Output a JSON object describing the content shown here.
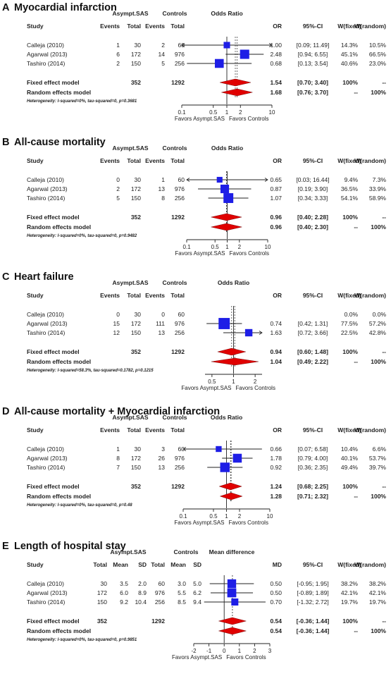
{
  "colors": {
    "box": "#1e1ee6",
    "diamond": "#e00000",
    "ink": "#222222"
  },
  "chart_data": [
    {
      "type": "forest",
      "letter": "A",
      "title": "Myocardial infarction",
      "measure_label": "Odds Ratio",
      "scale": "log",
      "group_exp": "Asympt.SAS",
      "group_ctrl": "Controls",
      "columns": [
        "Study",
        "Events",
        "Total",
        "Events",
        "Total",
        "OR",
        "95%-CI",
        "W(fixed)",
        "W(random)"
      ],
      "studies": [
        {
          "name": "Calleja (2010)",
          "cells": [
            "1",
            "30",
            "2",
            "60"
          ],
          "est": 1.0,
          "lo": 0.09,
          "hi": 11.49,
          "est_txt": "1.00",
          "ci_txt": "[0.09; 11.49]",
          "wf": "14.3%",
          "wr": "10.5%",
          "w": 14.3
        },
        {
          "name": "Agarwal (2013)",
          "cells": [
            "6",
            "172",
            "14",
            "976"
          ],
          "est": 2.48,
          "lo": 0.94,
          "hi": 6.55,
          "est_txt": "2.48",
          "ci_txt": "[0.94; 6.55]",
          "wf": "45.1%",
          "wr": "66.5%",
          "w": 45.1
        },
        {
          "name": "Tashiro (2014)",
          "cells": [
            "2",
            "150",
            "5",
            "256"
          ],
          "est": 0.68,
          "lo": 0.13,
          "hi": 3.54,
          "est_txt": "0.68",
          "ci_txt": "[0.13; 3.54]",
          "wf": "40.6%",
          "wr": "23.0%",
          "w": 40.6
        }
      ],
      "fixed": {
        "label": "Fixed effect model",
        "total_exp": "352",
        "total_ctrl": "1292",
        "est": 1.54,
        "lo": 0.7,
        "hi": 3.4,
        "est_txt": "1.54",
        "ci_txt": "[0.70; 3.40]",
        "wf": "100%",
        "wr": "--"
      },
      "random": {
        "label": "Random effects model",
        "est": 1.68,
        "lo": 0.76,
        "hi": 3.7,
        "est_txt": "1.68",
        "ci_txt": "[0.76; 3.70]",
        "wf": "--",
        "wr": "100%"
      },
      "heterogeneity": "Heterogeneity: I-squared=0%, tau-squared=0, p=0.3681",
      "ticks": [
        {
          "v": 0.1,
          "l": "0.1"
        },
        {
          "v": 0.5,
          "l": "0.5"
        },
        {
          "v": 1,
          "l": "1"
        },
        {
          "v": 2,
          "l": "2"
        },
        {
          "v": 10,
          "l": "10"
        }
      ],
      "xlim": [
        0.1,
        10
      ],
      "ref": 1,
      "favors_left": "Favors Asympt.SAS",
      "favors_right": "Favors Controls"
    },
    {
      "type": "forest",
      "letter": "B",
      "title": "All-cause mortality",
      "measure_label": "Odds Ratio",
      "scale": "log",
      "group_exp": "Asympt.SAS",
      "group_ctrl": "Controls",
      "columns": [
        "Study",
        "Events",
        "Total",
        "Events",
        "Total",
        "OR",
        "95%-CI",
        "W(fixed)",
        "W(random)"
      ],
      "studies": [
        {
          "name": "Calleja (2010)",
          "cells": [
            "0",
            "30",
            "1",
            "60"
          ],
          "est": 0.65,
          "lo": 0.03,
          "hi": 16.44,
          "est_txt": "0.65",
          "ci_txt": "[0.03; 16.44]",
          "wf": "9.4%",
          "wr": "7.3%",
          "w": 9.4
        },
        {
          "name": "Agarwal (2013)",
          "cells": [
            "2",
            "172",
            "13",
            "976"
          ],
          "est": 0.87,
          "lo": 0.19,
          "hi": 3.9,
          "est_txt": "0.87",
          "ci_txt": "[0.19; 3.90]",
          "wf": "36.5%",
          "wr": "33.9%",
          "w": 36.5
        },
        {
          "name": "Tashiro (2014)",
          "cells": [
            "5",
            "150",
            "8",
            "256"
          ],
          "est": 1.07,
          "lo": 0.34,
          "hi": 3.33,
          "est_txt": "1.07",
          "ci_txt": "[0.34; 3.33]",
          "wf": "54.1%",
          "wr": "58.9%",
          "w": 54.1
        }
      ],
      "fixed": {
        "label": "Fixed effect model",
        "total_exp": "352",
        "total_ctrl": "1292",
        "est": 0.96,
        "lo": 0.4,
        "hi": 2.28,
        "est_txt": "0.96",
        "ci_txt": "[0.40; 2.28]",
        "wf": "100%",
        "wr": "--"
      },
      "random": {
        "label": "Random effects model",
        "est": 0.96,
        "lo": 0.4,
        "hi": 2.3,
        "est_txt": "0.96",
        "ci_txt": "[0.40; 2.30]",
        "wf": "--",
        "wr": "100%"
      },
      "heterogeneity": "Heterogeneity: I-squared=0%, tau-squared=0, p=0.9482",
      "ticks": [
        {
          "v": 0.1,
          "l": "0.1"
        },
        {
          "v": 0.5,
          "l": "0.5"
        },
        {
          "v": 1,
          "l": "1"
        },
        {
          "v": 2,
          "l": "2"
        },
        {
          "v": 10,
          "l": "10"
        }
      ],
      "xlim": [
        0.1,
        10
      ],
      "ref": 1,
      "favors_left": "Favors Asympt.SAS",
      "favors_right": "Favors Controls"
    },
    {
      "type": "forest",
      "letter": "C",
      "title": "Heart failure",
      "measure_label": "Odds Ratio",
      "scale": "log",
      "group_exp": "Asympt.SAS",
      "group_ctrl": "Controls",
      "columns": [
        "Study",
        "Events",
        "Total",
        "Events",
        "Total",
        "OR",
        "95%-CI",
        "W(fixed)",
        "W(random)"
      ],
      "studies": [
        {
          "name": "Calleja (2010)",
          "cells": [
            "0",
            "30",
            "0",
            "60"
          ],
          "est": null,
          "lo": null,
          "hi": null,
          "est_txt": "",
          "ci_txt": "",
          "wf": "0.0%",
          "wr": "0.0%",
          "w": 0
        },
        {
          "name": "Agarwal (2013)",
          "cells": [
            "15",
            "172",
            "111",
            "976"
          ],
          "est": 0.74,
          "lo": 0.42,
          "hi": 1.31,
          "est_txt": "0.74",
          "ci_txt": "[0.42; 1.31]",
          "wf": "77.5%",
          "wr": "57.2%",
          "w": 77.5
        },
        {
          "name": "Tashiro (2014)",
          "cells": [
            "12",
            "150",
            "13",
            "256"
          ],
          "est": 1.63,
          "lo": 0.72,
          "hi": 3.66,
          "est_txt": "1.63",
          "ci_txt": "[0.72; 3.66]",
          "wf": "22.5%",
          "wr": "42.8%",
          "w": 22.5
        }
      ],
      "fixed": {
        "label": "Fixed effect model",
        "total_exp": "352",
        "total_ctrl": "1292",
        "est": 0.94,
        "lo": 0.6,
        "hi": 1.48,
        "est_txt": "0.94",
        "ci_txt": "[0.60; 1.48]",
        "wf": "100%",
        "wr": "--"
      },
      "random": {
        "label": "Random effects model",
        "est": 1.04,
        "lo": 0.49,
        "hi": 2.22,
        "est_txt": "1.04",
        "ci_txt": "[0.49; 2.22]",
        "wf": "--",
        "wr": "100%"
      },
      "heterogeneity": "Heterogeneity: I-squared=58.3%, tau-squared=0.1782, p=0.1215",
      "ticks": [
        {
          "v": 0.5,
          "l": "0.5"
        },
        {
          "v": 1,
          "l": "1"
        },
        {
          "v": 2,
          "l": "2"
        }
      ],
      "xlim": [
        0.4,
        2.5
      ],
      "ref": 1,
      "favors_left": "Favors Asympt.SAS",
      "favors_right": "Favors Controls"
    },
    {
      "type": "forest",
      "letter": "D",
      "title": "All-cause mortality + Myocardial infarction",
      "measure_label": "Odds Ratio",
      "scale": "log",
      "group_exp": "Asympt.SAS",
      "group_ctrl": "Controls",
      "columns": [
        "Study",
        "Events",
        "Total",
        "Events",
        "Total",
        "OR",
        "95%-CI",
        "W(fixed)",
        "W(random)"
      ],
      "studies": [
        {
          "name": "Calleja (2010)",
          "cells": [
            "1",
            "30",
            "3",
            "60"
          ],
          "est": 0.66,
          "lo": 0.07,
          "hi": 6.58,
          "est_txt": "0.66",
          "ci_txt": "[0.07; 6.58]",
          "wf": "10.4%",
          "wr": "6.6%",
          "w": 10.4
        },
        {
          "name": "Agarwal (2013)",
          "cells": [
            "8",
            "172",
            "26",
            "976"
          ],
          "est": 1.78,
          "lo": 0.79,
          "hi": 4.0,
          "est_txt": "1.78",
          "ci_txt": "[0.79; 4.00]",
          "wf": "40.1%",
          "wr": "53.7%",
          "w": 40.1
        },
        {
          "name": "Tashiro (2014)",
          "cells": [
            "7",
            "150",
            "13",
            "256"
          ],
          "est": 0.92,
          "lo": 0.36,
          "hi": 2.35,
          "est_txt": "0.92",
          "ci_txt": "[0.36; 2.35]",
          "wf": "49.4%",
          "wr": "39.7%",
          "w": 49.4
        }
      ],
      "fixed": {
        "label": "Fixed effect model",
        "total_exp": "352",
        "total_ctrl": "1292",
        "est": 1.24,
        "lo": 0.68,
        "hi": 2.25,
        "est_txt": "1.24",
        "ci_txt": "[0.68; 2.25]",
        "wf": "100%",
        "wr": "--"
      },
      "random": {
        "label": "Random effects model",
        "est": 1.28,
        "lo": 0.71,
        "hi": 2.32,
        "est_txt": "1.28",
        "ci_txt": "[0.71; 2.32]",
        "wf": "--",
        "wr": "100%"
      },
      "heterogeneity": "Heterogeneity: I-squared=0%, tau-squared=0, p=0.48",
      "ticks": [
        {
          "v": 0.1,
          "l": "0.1"
        },
        {
          "v": 0.5,
          "l": "0.5"
        },
        {
          "v": 1,
          "l": "1"
        },
        {
          "v": 2,
          "l": "2"
        },
        {
          "v": 10,
          "l": "10"
        }
      ],
      "xlim": [
        0.1,
        10
      ],
      "ref": 1,
      "favors_left": "Favors Asympt.SAS",
      "favors_right": "Favors Controls"
    },
    {
      "type": "forest",
      "letter": "E",
      "title": "Length of hospital stay",
      "measure_label": "Mean difference",
      "scale": "linear",
      "group_exp": "Asympt.SAS",
      "group_ctrl": "Controls",
      "columns": [
        "Study",
        "Total",
        "Mean",
        "SD",
        "Total",
        "Mean",
        "SD",
        "MD",
        "95%-CI",
        "W(fixed)",
        "W(random)"
      ],
      "studies": [
        {
          "name": "Calleja (2010)",
          "cells": [
            "30",
            "3.5",
            "2.0",
            "60",
            "3.0",
            "5.0"
          ],
          "est": 0.5,
          "lo": -0.95,
          "hi": 1.95,
          "est_txt": "0.50",
          "ci_txt": "[-0.95; 1.95]",
          "wf": "38.2%",
          "wr": "38.2%",
          "w": 38.2
        },
        {
          "name": "Agarwal (2013)",
          "cells": [
            "172",
            "6.0",
            "8.9",
            "976",
            "5.5",
            "6.2"
          ],
          "est": 0.5,
          "lo": -0.89,
          "hi": 1.89,
          "est_txt": "0.50",
          "ci_txt": "[-0.89; 1.89]",
          "wf": "42.1%",
          "wr": "42.1%",
          "w": 42.1
        },
        {
          "name": "Tashiro (2014)",
          "cells": [
            "150",
            "9.2",
            "10.4",
            "256",
            "8.5",
            "9.4"
          ],
          "est": 0.7,
          "lo": -1.32,
          "hi": 2.72,
          "est_txt": "0.70",
          "ci_txt": "[-1.32; 2.72]",
          "wf": "19.7%",
          "wr": "19.7%",
          "w": 19.7
        }
      ],
      "fixed": {
        "label": "Fixed effect model",
        "total_exp": "352",
        "total_ctrl": "1292",
        "est": 0.54,
        "lo": -0.36,
        "hi": 1.44,
        "est_txt": "0.54",
        "ci_txt": "[-0.36; 1.44]",
        "wf": "100%",
        "wr": "--"
      },
      "random": {
        "label": "Random effects model",
        "est": 0.54,
        "lo": -0.36,
        "hi": 1.44,
        "est_txt": "0.54",
        "ci_txt": "[-0.36; 1.44]",
        "wf": "--",
        "wr": "100%"
      },
      "heterogeneity": "Heterogeneity: I-squared=0%, tau-squared=0, p=0.9851",
      "ticks": [
        {
          "v": -2,
          "l": "-2"
        },
        {
          "v": -1,
          "l": "-1"
        },
        {
          "v": 0,
          "l": "0"
        },
        {
          "v": 1,
          "l": "1"
        },
        {
          "v": 2,
          "l": "2"
        },
        {
          "v": 3,
          "l": "3"
        }
      ],
      "xlim": [
        -2,
        3
      ],
      "ref": 0,
      "favors_left": "Favors Asympt.SAS",
      "favors_right": "Favors Controls"
    }
  ]
}
